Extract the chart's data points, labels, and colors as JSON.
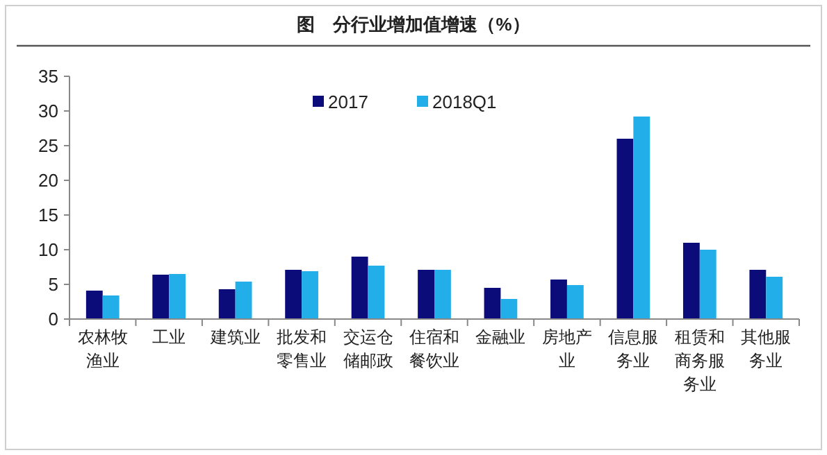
{
  "chart_data": {
    "type": "bar",
    "title": "图　分行业增加值增速（%）",
    "categories": [
      "农林牧渔业",
      "工业",
      "建筑业",
      "批发和零售业",
      "交运仓储邮政",
      "住宿和餐饮业",
      "金融业",
      "房地产业",
      "信息服务业",
      "租赁和商务服务业",
      "其他服务业"
    ],
    "series": [
      {
        "name": "2017",
        "color": "#0b0b7a",
        "values": [
          4.1,
          6.4,
          4.3,
          7.1,
          9.0,
          7.1,
          4.5,
          5.7,
          26.0,
          11.0,
          7.1
        ]
      },
      {
        "name": "2018Q1",
        "color": "#22aee8",
        "values": [
          3.4,
          6.5,
          5.4,
          6.9,
          7.7,
          7.1,
          2.9,
          4.9,
          29.2,
          10.0,
          6.1
        ]
      }
    ],
    "ylim": [
      0,
      35
    ],
    "yticks": [
      0,
      5,
      10,
      15,
      20,
      25,
      30,
      35
    ],
    "grid": false,
    "legend": "top"
  }
}
